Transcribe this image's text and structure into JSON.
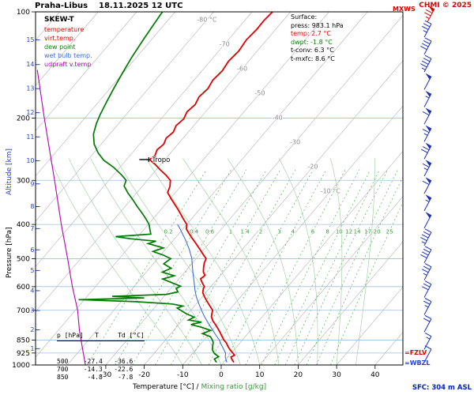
{
  "header": {
    "title": "Praha-Libus    18.11.2025 12 UTC",
    "copyright": "CHMI © 2025",
    "mxws": "MXWS"
  },
  "legend": {
    "title": "SKEW-T",
    "items": [
      {
        "label": "temperature",
        "color": "#e00000"
      },
      {
        "label": "virt.temp.",
        "color": "#e00000"
      },
      {
        "label": "dew point",
        "color": "#008800"
      },
      {
        "label": "wet bulb temp.",
        "color": "#3a6fd8"
      },
      {
        "label": "udpraft v.temp",
        "color": "#b400b4"
      }
    ]
  },
  "surface_box": {
    "title": "Surface:",
    "rows": [
      {
        "text": "press: 983.1 hPa",
        "color": "#000000"
      },
      {
        "text": "temp: 2.7 °C",
        "color": "#e00000"
      },
      {
        "text": "dwpt: -1.8 °C",
        "color": "#008800"
      },
      {
        "text": "t-conv: 6.3 °C",
        "color": "#000000"
      },
      {
        "text": "t-mxfc: 8.6 °C",
        "color": "#000000"
      }
    ]
  },
  "table": {
    "header": "p [hPa]   T     Td [°C]",
    "rows": [
      "500    -27.4   -36.6",
      "700    -14.3   -22.6",
      "850     -4.8    -7.8"
    ]
  },
  "axes": {
    "pressure_label": "Pressure [hPa]",
    "altitude_label": "Altitude [km]",
    "x_label_black": "Temperature [°C] /",
    "x_label_green": " Mixing ratio [g/kg]",
    "pressure_ticks": [
      100,
      200,
      300,
      400,
      500,
      600,
      700,
      850,
      925,
      1000
    ],
    "altitude_ticks": [
      {
        "km": 1,
        "p": 899
      },
      {
        "km": 2,
        "p": 795
      },
      {
        "km": 3,
        "p": 701
      },
      {
        "km": 4,
        "p": 616
      },
      {
        "km": 5,
        "p": 540
      },
      {
        "km": 6,
        "p": 472
      },
      {
        "km": 7,
        "p": 411
      },
      {
        "km": 8,
        "p": 356
      },
      {
        "km": 9,
        "p": 307
      },
      {
        "km": 10,
        "p": 264
      },
      {
        "km": 11,
        "p": 226
      },
      {
        "km": 12,
        "p": 193
      },
      {
        "km": 13,
        "p": 165
      },
      {
        "km": 14,
        "p": 141
      },
      {
        "km": 15,
        "p": 120
      }
    ],
    "temp_ticks": [
      -30,
      -20,
      -10,
      0,
      10,
      20,
      30,
      40
    ],
    "isotherm_labels": [
      {
        "t": -80,
        "text": "-80 °C"
      },
      {
        "t": -70,
        "text": "-70"
      },
      {
        "t": -60,
        "text": "-60"
      },
      {
        "t": -50,
        "text": "-50"
      },
      {
        "t": -40,
        "text": "-40"
      },
      {
        "t": -30,
        "text": "-30"
      },
      {
        "t": -20,
        "text": "-20"
      },
      {
        "t": -10,
        "text": "-10 °C"
      }
    ],
    "mixing_labels": [
      0.2,
      0.4,
      0.6,
      1,
      1.4,
      2,
      3,
      4,
      6,
      8,
      10,
      12,
      14,
      17,
      20,
      25
    ],
    "moist_adiabat_starts_c": [
      -10,
      -5,
      0,
      5,
      10,
      15,
      20,
      25,
      30,
      35
    ]
  },
  "markers": {
    "tropo": "Tropo",
    "fzlv": "=FZLV",
    "wbzl": "=WBZL",
    "sfc": "SFC: 304 m ASL"
  },
  "chart_data": {
    "type": "skewt",
    "station": "Praha-Libus",
    "datetime": "18.11.2025 12 UTC",
    "surface": {
      "pressure_hpa": 983.1,
      "temp_c": 2.7,
      "dewpoint_c": -1.8,
      "t_conv_c": 6.3,
      "t_mxfc_c": 8.6,
      "station_elevation": "304 m ASL"
    },
    "tropopause_p_hpa": 262,
    "levels_table": [
      {
        "p": 500,
        "T": -27.4,
        "Td": -36.6
      },
      {
        "p": 700,
        "T": -14.3,
        "Td": -22.6
      },
      {
        "p": 850,
        "T": -4.8,
        "Td": -7.8
      }
    ],
    "temperature_profile": [
      [
        983,
        2.7
      ],
      [
        965,
        1.6
      ],
      [
        950,
        0.8
      ],
      [
        938,
        1.3
      ],
      [
        925,
        0.4
      ],
      [
        905,
        -1.1
      ],
      [
        885,
        -2.4
      ],
      [
        865,
        -3.6
      ],
      [
        850,
        -4.8
      ],
      [
        830,
        -6.1
      ],
      [
        810,
        -7.4
      ],
      [
        790,
        -8.8
      ],
      [
        770,
        -10.3
      ],
      [
        750,
        -11.9
      ],
      [
        730,
        -13.2
      ],
      [
        715,
        -13.8
      ],
      [
        700,
        -14.3
      ],
      [
        685,
        -15.6
      ],
      [
        670,
        -16.9
      ],
      [
        655,
        -18.2
      ],
      [
        640,
        -19.5
      ],
      [
        625,
        -20.7
      ],
      [
        610,
        -21.4
      ],
      [
        600,
        -21.7
      ],
      [
        585,
        -23.1
      ],
      [
        570,
        -24.4
      ],
      [
        558,
        -24.0
      ],
      [
        545,
        -25.2
      ],
      [
        530,
        -26.1
      ],
      [
        515,
        -26.9
      ],
      [
        500,
        -27.4
      ],
      [
        488,
        -28.9
      ],
      [
        475,
        -30.5
      ],
      [
        462,
        -32.2
      ],
      [
        450,
        -33.8
      ],
      [
        438,
        -35.5
      ],
      [
        425,
        -37.3
      ],
      [
        412,
        -39.1
      ],
      [
        400,
        -40.0
      ],
      [
        388,
        -41.8
      ],
      [
        375,
        -43.7
      ],
      [
        362,
        -45.7
      ],
      [
        350,
        -47.7
      ],
      [
        338,
        -49.8
      ],
      [
        325,
        -52.0
      ],
      [
        312,
        -52.8
      ],
      [
        300,
        -54.0
      ],
      [
        290,
        -56.3
      ],
      [
        280,
        -59.0
      ],
      [
        270,
        -61.6
      ],
      [
        262,
        -64.0
      ],
      [
        255,
        -63.5
      ],
      [
        246,
        -64.2
      ],
      [
        237,
        -63.7
      ],
      [
        228,
        -64.4
      ],
      [
        219,
        -63.9
      ],
      [
        210,
        -64.6
      ],
      [
        201,
        -64.1
      ],
      [
        192,
        -64.8
      ],
      [
        183,
        -64.3
      ],
      [
        174,
        -65.0
      ],
      [
        165,
        -64.5
      ],
      [
        156,
        -65.1
      ],
      [
        147,
        -64.7
      ],
      [
        138,
        -65.2
      ],
      [
        129,
        -64.8
      ],
      [
        120,
        -65.3
      ],
      [
        112,
        -64.9
      ],
      [
        106,
        -65.0
      ],
      [
        100,
        -64.7
      ]
    ],
    "dewpoint_profile": [
      [
        983,
        -1.8
      ],
      [
        962,
        -3.1
      ],
      [
        947,
        -2.5
      ],
      [
        928,
        -4.3
      ],
      [
        905,
        -5.7
      ],
      [
        880,
        -6.5
      ],
      [
        862,
        -7.1
      ],
      [
        850,
        -7.8
      ],
      [
        832,
        -9.0
      ],
      [
        815,
        -11.8
      ],
      [
        798,
        -10.4
      ],
      [
        782,
        -13.4
      ],
      [
        768,
        -16.8
      ],
      [
        756,
        -14.6
      ],
      [
        746,
        -18.4
      ],
      [
        732,
        -17.6
      ],
      [
        716,
        -20.4
      ],
      [
        700,
        -22.6
      ],
      [
        690,
        -24.0
      ],
      [
        681,
        -23.0
      ],
      [
        672,
        -26.2
      ],
      [
        662,
        -36.0
      ],
      [
        653,
        -51.5
      ],
      [
        646,
        -34.8
      ],
      [
        639,
        -43.5
      ],
      [
        631,
        -29.8
      ],
      [
        621,
        -27.4
      ],
      [
        607,
        -28.6
      ],
      [
        598,
        -28.0
      ],
      [
        584,
        -31.2
      ],
      [
        571,
        -34.2
      ],
      [
        559,
        -31.9
      ],
      [
        546,
        -35.8
      ],
      [
        532,
        -34.4
      ],
      [
        517,
        -37.3
      ],
      [
        500,
        -36.6
      ],
      [
        489,
        -39.2
      ],
      [
        477,
        -42.8
      ],
      [
        466,
        -40.9
      ],
      [
        453,
        -45.8
      ],
      [
        446,
        -44.3
      ],
      [
        439,
        -51.5
      ],
      [
        433,
        -55.8
      ],
      [
        426,
        -47.2
      ],
      [
        414,
        -48.4
      ],
      [
        400,
        -49.8
      ],
      [
        386,
        -51.8
      ],
      [
        371,
        -54.2
      ],
      [
        356,
        -56.8
      ],
      [
        341,
        -59.4
      ],
      [
        326,
        -62.2
      ],
      [
        311,
        -64.8
      ],
      [
        300,
        -65.5
      ],
      [
        290,
        -67.8
      ],
      [
        276,
        -71.5
      ],
      [
        263,
        -75.8
      ],
      [
        251,
        -78.8
      ],
      [
        237,
        -81.8
      ],
      [
        222,
        -84.2
      ],
      [
        207,
        -85.8
      ],
      [
        195,
        -86.8
      ],
      [
        180,
        -87.9
      ],
      [
        165,
        -89.0
      ],
      [
        150,
        -90.1
      ],
      [
        135,
        -91.2
      ],
      [
        120,
        -92.1
      ],
      [
        108,
        -92.8
      ],
      [
        100,
        -93.3
      ]
    ],
    "wetbulb_profile": [
      [
        983,
        0.9
      ],
      [
        950,
        -0.7
      ],
      [
        925,
        -1.5
      ],
      [
        900,
        -3.0
      ],
      [
        875,
        -4.5
      ],
      [
        850,
        -6.0
      ],
      [
        820,
        -8.2
      ],
      [
        790,
        -10.4
      ],
      [
        760,
        -12.7
      ],
      [
        730,
        -15.0
      ],
      [
        700,
        -17.2
      ],
      [
        670,
        -19.4
      ],
      [
        640,
        -21.6
      ],
      [
        610,
        -23.6
      ],
      [
        600,
        -24.2
      ],
      [
        570,
        -26.2
      ],
      [
        540,
        -28.3
      ],
      [
        510,
        -30.4
      ],
      [
        500,
        -31.1
      ],
      [
        470,
        -33.9
      ],
      [
        440,
        -37.2
      ],
      [
        410,
        -41.0
      ],
      [
        400,
        -42.4
      ]
    ],
    "updraft_vtemp_profile": [
      [
        1000,
        -35.3
      ],
      [
        900,
        -39.6
      ],
      [
        800,
        -44.4
      ],
      [
        700,
        -49.4
      ],
      [
        600,
        -56.0
      ],
      [
        500,
        -63.4
      ],
      [
        400,
        -72.6
      ],
      [
        300,
        -84.1
      ],
      [
        200,
        -100.5
      ],
      [
        146,
        -113.0
      ]
    ],
    "wind_barbs": [
      {
        "p": 118,
        "kt": 35
      },
      {
        "p": 132,
        "kt": 40
      },
      {
        "p": 148,
        "kt": 45
      },
      {
        "p": 166,
        "kt": 50
      },
      {
        "p": 186,
        "kt": 55
      },
      {
        "p": 208,
        "kt": 60
      },
      {
        "p": 233,
        "kt": 65
      },
      {
        "p": 261,
        "kt": 70
      },
      {
        "p": 292,
        "kt": 65
      },
      {
        "p": 327,
        "kt": 60
      },
      {
        "p": 366,
        "kt": 55
      },
      {
        "p": 410,
        "kt": 50
      },
      {
        "p": 459,
        "kt": 45
      },
      {
        "p": 514,
        "kt": 40
      },
      {
        "p": 575,
        "kt": 35
      },
      {
        "p": 644,
        "kt": 30
      },
      {
        "p": 721,
        "kt": 25
      },
      {
        "p": 807,
        "kt": 20
      },
      {
        "p": 904,
        "kt": 15
      },
      {
        "p": 983,
        "kt": 10
      }
    ],
    "mxws_barb_kt": 75
  }
}
